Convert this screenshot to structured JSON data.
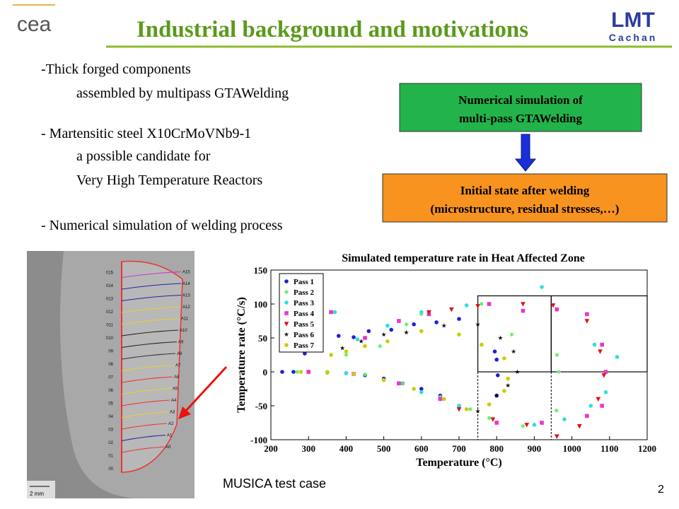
{
  "header": {
    "title": "Industrial background and motivations",
    "logo_left": "cea",
    "logo_right": [
      "LMT",
      "Cachan"
    ]
  },
  "bullets": [
    "-Thick forged components",
    "assembled by multipass GTAWelding",
    "- Martensitic steel X10CrMoVNb9-1",
    "a possible candidate for",
    "Very High Temperature Reactors",
    "- Numerical simulation of welding process"
  ],
  "flow": {
    "box1": [
      "Numerical simulation of",
      "multi-pass GTAWelding"
    ],
    "box2": [
      "Initial state after welding",
      "(microstructure, residual stresses,…)"
    ]
  },
  "image": {
    "left_labels": [
      "00",
      "01",
      "02",
      "03",
      "04",
      "05",
      "06",
      "07",
      "08",
      "09",
      "010",
      "011",
      "012",
      "013",
      "014",
      "015"
    ],
    "right_labels": [
      "A0",
      "A1",
      "A2",
      "A3",
      "A4",
      "A5",
      "A6",
      "A7",
      "A8",
      "A9",
      "A10",
      "A11",
      "A12",
      "A13",
      "A14",
      "A15"
    ],
    "scale": "2 mm"
  },
  "caption": "MUSICA test case",
  "page_number": "2",
  "chart_data": {
    "type": "scatter",
    "title": "Simulated temperature rate in Heat Affected Zone",
    "x_label": "Temperature (°C)",
    "y_label": "Temperature rate (°C/s)",
    "xlim": [
      200,
      1200
    ],
    "xticks": [
      200,
      300,
      400,
      500,
      600,
      700,
      800,
      900,
      1000,
      1100,
      1200
    ],
    "ylim": [
      -100,
      150
    ],
    "yticks": [
      -100,
      -50,
      0,
      50,
      100,
      150
    ],
    "legend": "upper left",
    "frames": [
      {
        "x": [
          750,
          945
        ],
        "y": [
          0,
          112
        ]
      },
      {
        "x": [
          945,
          1200
        ],
        "y": [
          0,
          112
        ]
      }
    ],
    "dashed_vlines": [
      750,
      945
    ],
    "series": [
      {
        "name": "Pass 1",
        "color": "#1f1fd6",
        "marker": "circle",
        "x": [
          230,
          260,
          300,
          350,
          400,
          450,
          500,
          550,
          600,
          650,
          700,
          290,
          380,
          420,
          460,
          520,
          580,
          640,
          700,
          795,
          800,
          803,
          800
        ],
        "y": [
          0,
          0,
          0,
          -1,
          -2,
          -5,
          -10,
          -17,
          -25,
          -35,
          -50,
          27,
          53,
          51,
          60,
          62,
          70,
          73,
          78,
          30,
          18,
          -5,
          -35
        ]
      },
      {
        "name": "Pass 2",
        "color": "#66ee66",
        "marker": "asterisk",
        "x": [
          270,
          350,
          450,
          550,
          650,
          730,
          780,
          870,
          400,
          490,
          560,
          600,
          760,
          840,
          960,
          965,
          959
        ],
        "y": [
          0,
          0,
          -4,
          -17,
          -37,
          -55,
          -68,
          -80,
          25,
          38,
          70,
          85,
          100,
          55,
          25,
          0,
          -57
        ]
      },
      {
        "name": "Pass 3",
        "color": "#33dddd",
        "marker": "circle",
        "x": [
          400,
          500,
          600,
          700,
          370,
          430,
          510,
          600,
          720,
          920,
          1060,
          1120,
          1090,
          1050,
          980,
          900
        ],
        "y": [
          -2,
          -12,
          -30,
          -50,
          88,
          48,
          68,
          88,
          98,
          125,
          40,
          22,
          -30,
          -50,
          -70,
          -78
        ]
      },
      {
        "name": "Pass 4",
        "color": "#ee33cc",
        "marker": "square",
        "x": [
          300,
          420,
          540,
          650,
          360,
          450,
          540,
          620,
          780,
          870,
          960,
          1040,
          1080,
          1090,
          1080,
          1040,
          920,
          800
        ],
        "y": [
          0,
          -3,
          -17,
          -40,
          88,
          50,
          75,
          85,
          100,
          90,
          92,
          85,
          40,
          0,
          -50,
          -65,
          -75,
          -75
        ]
      },
      {
        "name": "Pass 5",
        "color": "#dd1111",
        "marker": "triangle-down",
        "x": [
          620,
          680,
          750,
          870,
          950,
          1040,
          1075,
          1085,
          1070,
          1020,
          960,
          880,
          790,
          700
        ],
        "y": [
          88,
          92,
          97,
          100,
          98,
          75,
          30,
          -5,
          -40,
          -80,
          -95,
          -78,
          -70,
          -55
        ]
      },
      {
        "name": "Pass 6",
        "color": "#000000",
        "marker": "star",
        "x": [
          390,
          440,
          500,
          560,
          660,
          750,
          810,
          845,
          855,
          830,
          800,
          750
        ],
        "y": [
          35,
          45,
          55,
          58,
          68,
          70,
          50,
          30,
          0,
          -20,
          -35,
          -58
        ]
      },
      {
        "name": "Pass 7",
        "color": "#cccc00",
        "marker": "circle",
        "x": [
          280,
          350,
          420,
          500,
          580,
          660,
          720,
          360,
          400,
          450,
          510,
          600,
          700,
          760,
          820,
          830,
          820,
          780
        ],
        "y": [
          0,
          -1,
          -3,
          -12,
          -25,
          -40,
          -55,
          25,
          30,
          38,
          45,
          60,
          55,
          40,
          20,
          -10,
          -28,
          -48
        ]
      }
    ]
  }
}
